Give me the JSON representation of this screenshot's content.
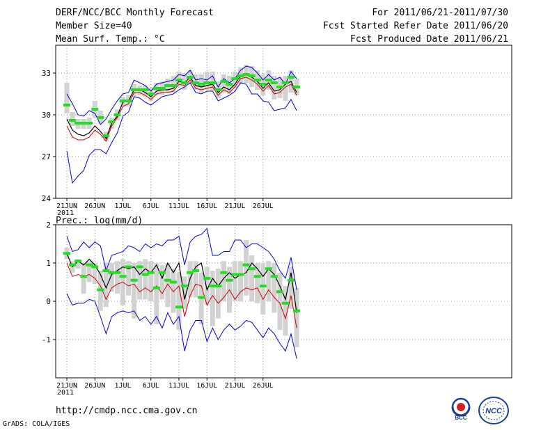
{
  "header": {
    "title": "DERF/NCC/BCC Monthly Forecast",
    "member_size": "Member Size=40",
    "variable_top": "Mean Surf. Temp.: °C",
    "forecast_period": "For 2011/06/21-2011/07/30",
    "fcst_started": "Fcst Started Refer Date 2011/06/20",
    "fcst_produced": "Fcst Produced Date 2011/06/21"
  },
  "footer": {
    "url": "http://cmdp.ncc.cma.gov.cn",
    "credit": "GrADS: COLA/IGES",
    "logo_bcc": "BCC",
    "logo_ncc": "NCC"
  },
  "colors": {
    "envelope": "#0000cc",
    "mean": "#000000",
    "median": "#cc0000",
    "observation": "#22dd22",
    "box": "#d2d2d2",
    "grid": "#888888"
  },
  "chart_data": [
    {
      "type": "line",
      "title": "Mean Surf. Temp.: °C",
      "x_tick_labels": [
        "21JUN",
        "26JUN",
        "1JUL",
        "6JUL",
        "11JUL",
        "16JUL",
        "21JUL",
        "26JUL"
      ],
      "x_tick_days": [
        1,
        6,
        11,
        16,
        21,
        26,
        31,
        36
      ],
      "year_label": "2011",
      "ylim": [
        24,
        35
      ],
      "y_ticks": [
        24,
        27,
        30,
        33
      ],
      "grid": true,
      "series": [
        {
          "name": "max",
          "values": [
            31.5,
            30.8,
            30.0,
            29.9,
            30.3,
            30.1,
            29.3,
            29.7,
            30.4,
            31.0,
            31.5,
            31.6,
            32.5,
            32.3,
            32.1,
            31.7,
            32.2,
            32.3,
            32.4,
            32.5,
            32.9,
            32.8,
            33.2,
            32.5,
            32.6,
            32.5,
            32.8,
            32.0,
            32.6,
            32.3,
            32.6,
            33.2,
            33.5,
            33.4,
            33.0,
            32.5,
            32.9,
            32.5,
            32.7,
            32.2,
            33.1,
            32.6
          ]
        },
        {
          "name": "mean",
          "values": [
            29.7,
            28.9,
            28.6,
            28.5,
            28.7,
            29.2,
            28.8,
            28.3,
            29.4,
            29.9,
            30.9,
            31.0,
            31.8,
            31.8,
            31.6,
            31.3,
            31.7,
            31.8,
            31.8,
            31.9,
            32.4,
            32.3,
            32.7,
            32.1,
            32.0,
            32.1,
            32.2,
            31.6,
            32.0,
            31.8,
            32.2,
            32.8,
            32.9,
            32.7,
            32.4,
            31.9,
            32.3,
            31.7,
            31.8,
            32.2,
            32.4,
            31.6
          ]
        },
        {
          "name": "median",
          "values": [
            29.2,
            28.4,
            28.2,
            28.2,
            28.4,
            28.9,
            28.6,
            28.1,
            29.2,
            29.8,
            30.6,
            30.8,
            31.6,
            31.6,
            31.4,
            31.1,
            31.5,
            31.6,
            31.6,
            31.7,
            32.2,
            32.1,
            32.5,
            31.9,
            31.8,
            31.9,
            32.0,
            31.4,
            31.8,
            31.6,
            32.0,
            32.6,
            32.7,
            32.5,
            32.2,
            31.7,
            32.1,
            31.5,
            31.6,
            32.0,
            32.2,
            31.4
          ]
        },
        {
          "name": "min",
          "values": [
            27.4,
            25.1,
            25.6,
            26.0,
            27.1,
            27.5,
            27.5,
            27.2,
            28.0,
            28.7,
            29.9,
            30.2,
            31.3,
            31.2,
            30.9,
            30.7,
            31.0,
            31.3,
            31.4,
            31.5,
            31.8,
            32.0,
            32.3,
            31.6,
            31.5,
            31.7,
            31.7,
            31.0,
            31.2,
            31.4,
            31.7,
            32.3,
            32.2,
            31.5,
            31.5,
            31.0,
            30.9,
            30.3,
            30.4,
            30.5,
            31.1,
            30.3
          ]
        },
        {
          "name": "observation",
          "values": [
            30.7,
            29.6,
            29.4,
            29.4,
            29.4,
            30.4,
            29.8,
            28.5,
            29.5,
            30.0,
            31.0,
            31.0,
            31.8,
            31.8,
            31.8,
            31.5,
            31.9,
            31.9,
            32.1,
            32.1,
            32.5,
            32.3,
            32.7,
            32.3,
            32.2,
            32.3,
            32.3,
            31.8,
            32.4,
            32.2,
            32.6,
            32.8,
            32.9,
            32.8,
            32.5,
            32.2,
            32.5,
            32.3,
            32.0,
            32.3,
            32.7,
            32.0
          ]
        }
      ],
      "boxes": {
        "low": [
          30.1,
          29.2,
          29.0,
          29.0,
          29.0,
          29.8,
          29.4,
          28.1,
          29.0,
          29.6,
          30.6,
          30.6,
          31.3,
          31.4,
          31.3,
          31.0,
          31.4,
          31.4,
          31.6,
          31.6,
          32.0,
          31.8,
          32.2,
          31.8,
          31.6,
          31.8,
          31.7,
          31.2,
          31.6,
          31.5,
          31.9,
          32.2,
          32.3,
          32.0,
          31.8,
          31.4,
          31.8,
          31.1,
          31.2,
          31.0,
          31.6,
          31.4
        ],
        "high": [
          32.3,
          30.2,
          29.7,
          29.7,
          29.8,
          31.0,
          30.3,
          28.8,
          29.8,
          30.4,
          31.3,
          31.4,
          32.2,
          32.1,
          32.1,
          31.9,
          32.3,
          32.4,
          32.6,
          32.8,
          33.1,
          33.0,
          33.2,
          32.9,
          32.9,
          33.1,
          33.1,
          32.4,
          32.9,
          32.8,
          33.1,
          33.4,
          33.6,
          33.5,
          33.2,
          32.9,
          33.2,
          32.8,
          32.7,
          32.8,
          33.2,
          32.6
        ]
      }
    },
    {
      "type": "line",
      "title": "Prec.: log(mm/d)",
      "x_tick_labels": [
        "21JUN",
        "26JUN",
        "1JUL",
        "6JUL",
        "11JUL",
        "16JUL",
        "21JUL",
        "26JUL"
      ],
      "x_tick_days": [
        1,
        6,
        11,
        16,
        21,
        26,
        31,
        36
      ],
      "year_label": "2011",
      "ylim": [
        -2,
        2
      ],
      "y_ticks": [
        -1,
        0,
        1,
        2
      ],
      "grid": true,
      "series": [
        {
          "name": "max",
          "values": [
            1.7,
            1.3,
            1.35,
            1.55,
            1.4,
            1.55,
            1.45,
            0.8,
            1.2,
            1.25,
            1.3,
            1.45,
            1.4,
            1.3,
            1.5,
            1.4,
            1.5,
            1.45,
            1.6,
            1.6,
            1.7,
            0.95,
            1.55,
            1.7,
            1.75,
            1.9,
            1.2,
            1.2,
            1.3,
            1.3,
            1.6,
            1.6,
            1.4,
            1.5,
            1.5,
            1.4,
            1.3,
            1.1,
            0.8,
            0.6,
            1.15,
            0.3
          ]
        },
        {
          "name": "mean",
          "values": [
            1.25,
            0.9,
            1.05,
            0.95,
            1.1,
            0.95,
            0.7,
            0.35,
            0.7,
            0.8,
            0.9,
            0.85,
            0.9,
            0.7,
            0.85,
            0.75,
            0.95,
            0.6,
            1.0,
            0.75,
            1.0,
            0.05,
            0.6,
            0.9,
            1.0,
            0.3,
            0.6,
            0.4,
            0.6,
            0.75,
            0.6,
            0.7,
            0.75,
            1.0,
            0.85,
            0.65,
            0.85,
            0.7,
            0.4,
            0.05,
            0.75,
            -0.3
          ]
        },
        {
          "name": "median",
          "values": [
            1.0,
            0.65,
            0.7,
            0.65,
            0.7,
            0.6,
            0.4,
            0.05,
            0.35,
            0.45,
            0.5,
            0.4,
            0.45,
            0.25,
            0.35,
            0.25,
            0.4,
            0.2,
            0.45,
            0.25,
            0.4,
            -0.4,
            0.15,
            0.45,
            0.4,
            -0.1,
            0.15,
            -0.05,
            0.1,
            0.3,
            0.05,
            0.25,
            0.35,
            0.3,
            0.35,
            0.05,
            0.3,
            0.1,
            -0.05,
            -0.45,
            0.15,
            -0.7
          ]
        },
        {
          "name": "min",
          "values": [
            0.2,
            -0.1,
            -0.05,
            -0.05,
            0.05,
            0.0,
            -0.4,
            -0.85,
            -0.4,
            -0.3,
            -0.25,
            -0.3,
            -0.25,
            -0.5,
            -0.4,
            -0.6,
            -0.4,
            -0.7,
            -0.3,
            -0.6,
            -0.4,
            -1.3,
            -0.75,
            -0.5,
            -0.5,
            -1.05,
            -0.7,
            -1.0,
            -0.75,
            -0.6,
            -0.75,
            -0.65,
            -0.5,
            -0.55,
            -0.75,
            -0.95,
            -0.7,
            -0.85,
            -1.1,
            -1.3,
            -0.85,
            -1.5
          ]
        },
        {
          "name": "observation",
          "values": [
            1.25,
            0.95,
            1.05,
            0.65,
            0.95,
            0.9,
            0.3,
            0.8,
            0.75,
            0.75,
            0.65,
            0.9,
            0.55,
            0.9,
            0.7,
            0.75,
            0.35,
            0.75,
            0.55,
            0.5,
            -0.15,
            0.4,
            0.75,
            0.8,
            0.1,
            0.6,
            0.4,
            0.4,
            0.75,
            0.55,
            0.7,
            0.7,
            0.95,
            0.85,
            0.65,
            0.4,
            0.85,
            0.65,
            0.25,
            -0.05,
            0.55,
            -0.25
          ]
        }
      ],
      "boxes": {
        "low": [
          1.1,
          0.75,
          0.85,
          0.2,
          0.5,
          0.45,
          -0.25,
          -0.15,
          0.25,
          0.2,
          -0.1,
          0.15,
          -0.45,
          0.05,
          0.05,
          0.0,
          -0.6,
          0.05,
          -0.15,
          -0.3,
          -0.75,
          -0.2,
          0.1,
          0.1,
          -0.6,
          -0.1,
          -0.65,
          -0.45,
          0.0,
          -0.3,
          0.0,
          0.0,
          0.15,
          0.0,
          -0.05,
          -0.35,
          0.0,
          -0.3,
          -0.75,
          -0.9,
          -0.2,
          -1.2
        ],
        "high": [
          1.4,
          1.05,
          1.1,
          1.0,
          1.05,
          1.0,
          0.8,
          1.0,
          1.0,
          1.05,
          1.1,
          1.05,
          1.0,
          1.05,
          1.1,
          1.05,
          1.0,
          0.95,
          1.0,
          0.85,
          0.75,
          0.65,
          1.05,
          1.05,
          0.75,
          0.9,
          0.8,
          0.85,
          1.05,
          0.9,
          1.05,
          1.05,
          1.6,
          1.2,
          1.0,
          1.0,
          1.05,
          1.0,
          0.75,
          0.4,
          0.9,
          0.35
        ]
      }
    }
  ]
}
